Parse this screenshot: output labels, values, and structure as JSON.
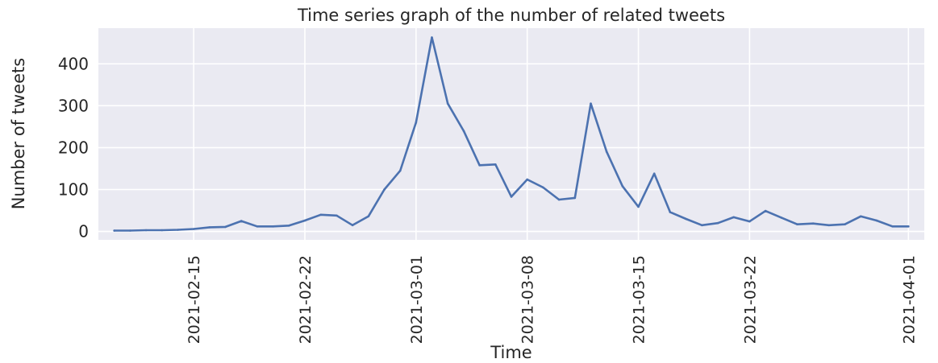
{
  "chart_data": {
    "type": "line",
    "title": "Time series graph of the number of related tweets",
    "xlabel": "Time",
    "ylabel": "Number of tweets",
    "grid": true,
    "background": "#eaeaf2",
    "grid_color": "#ffffff",
    "line_color": "#4c72b0",
    "xlim": [
      "2021-02-09",
      "2021-04-02"
    ],
    "ylim": [
      -20,
      485
    ],
    "yticks": [
      0,
      100,
      200,
      300,
      400
    ],
    "xticks": [
      "2021-02-15",
      "2021-02-22",
      "2021-03-01",
      "2021-03-08",
      "2021-03-15",
      "2021-03-22",
      "2021-04-01"
    ],
    "series": [
      {
        "x": [
          "2021-02-10",
          "2021-02-11",
          "2021-02-12",
          "2021-02-13",
          "2021-02-14",
          "2021-02-15",
          "2021-02-16",
          "2021-02-17",
          "2021-02-18",
          "2021-02-19",
          "2021-02-20",
          "2021-02-21",
          "2021-02-22",
          "2021-02-23",
          "2021-02-24",
          "2021-02-25",
          "2021-02-26",
          "2021-02-27",
          "2021-02-28",
          "2021-03-01",
          "2021-03-02",
          "2021-03-03",
          "2021-03-04",
          "2021-03-05",
          "2021-03-06",
          "2021-03-07",
          "2021-03-08",
          "2021-03-09",
          "2021-03-10",
          "2021-03-11",
          "2021-03-12",
          "2021-03-13",
          "2021-03-14",
          "2021-03-15",
          "2021-03-16",
          "2021-03-17",
          "2021-03-18",
          "2021-03-19",
          "2021-03-20",
          "2021-03-21",
          "2021-03-22",
          "2021-03-23",
          "2021-03-24",
          "2021-03-25",
          "2021-03-26",
          "2021-03-27",
          "2021-03-28",
          "2021-03-29",
          "2021-03-30",
          "2021-03-31",
          "2021-04-01"
        ],
        "values": [
          2,
          2,
          3,
          3,
          4,
          6,
          10,
          11,
          25,
          12,
          12,
          14,
          26,
          40,
          38,
          15,
          36,
          100,
          145,
          260,
          463,
          305,
          240,
          158,
          160,
          83,
          124,
          105,
          76,
          80,
          305,
          190,
          108,
          59,
          138,
          46,
          30,
          15,
          20,
          34,
          24,
          49,
          33,
          17,
          19,
          15,
          17,
          36,
          26,
          12,
          12
        ]
      }
    ]
  }
}
